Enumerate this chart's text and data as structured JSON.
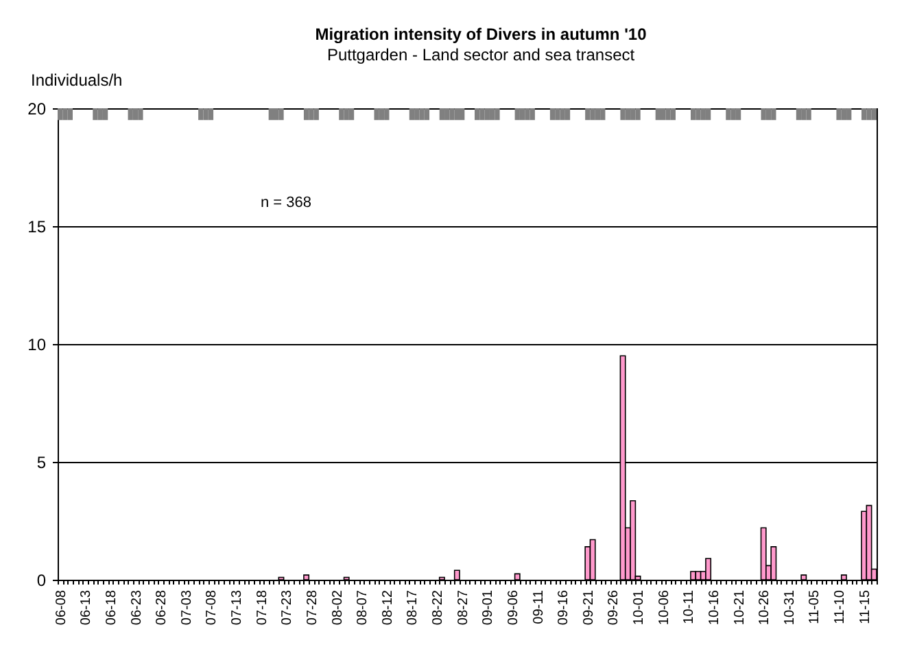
{
  "chart_data": {
    "type": "bar",
    "title": "Migration intensity of Divers in autumn '10",
    "subtitle": "Puttgarden - Land sector and sea transect",
    "ylabel": "Individuals/h",
    "categories": [
      "06-08",
      null,
      null,
      null,
      null,
      "06-13",
      null,
      null,
      null,
      null,
      "06-18",
      null,
      null,
      null,
      null,
      "06-23",
      null,
      null,
      null,
      null,
      "06-28",
      null,
      null,
      null,
      null,
      "07-03",
      null,
      null,
      null,
      null,
      "07-08",
      null,
      null,
      null,
      null,
      "07-13",
      null,
      null,
      null,
      null,
      "07-18",
      null,
      null,
      null,
      null,
      "07-23",
      null,
      null,
      null,
      null,
      "07-28",
      null,
      null,
      null,
      null,
      "08-02",
      null,
      null,
      null,
      null,
      "08-07",
      null,
      null,
      null,
      null,
      "08-12",
      null,
      null,
      null,
      null,
      "08-17",
      null,
      null,
      null,
      null,
      "08-22",
      null,
      null,
      null,
      null,
      "08-27",
      null,
      null,
      null,
      null,
      "09-01",
      null,
      null,
      null,
      null,
      "09-06",
      null,
      null,
      null,
      null,
      "09-11",
      null,
      null,
      null,
      null,
      "09-16",
      null,
      null,
      null,
      null,
      "09-21",
      null,
      null,
      null,
      null,
      "09-26",
      null,
      null,
      null,
      null,
      "10-01",
      null,
      null,
      null,
      null,
      "10-06",
      null,
      null,
      null,
      null,
      "10-11",
      null,
      null,
      null,
      null,
      "10-16",
      null,
      null,
      null,
      null,
      "10-21",
      null,
      null,
      null,
      null,
      "10-26",
      null,
      null,
      null,
      null,
      "10-31",
      null,
      null,
      null,
      null,
      "11-05",
      null,
      null,
      null,
      null,
      "11-10",
      null,
      null,
      null,
      null,
      "11-15",
      null,
      null
    ],
    "series": [
      {
        "color": "#ff99cc",
        "values": [
          null,
          null,
          null,
          null,
          null,
          null,
          null,
          null,
          null,
          null,
          null,
          null,
          null,
          null,
          null,
          null,
          null,
          null,
          null,
          null,
          null,
          null,
          null,
          null,
          null,
          null,
          null,
          null,
          null,
          null,
          null,
          null,
          null,
          null,
          null,
          null,
          null,
          null,
          null,
          null,
          null,
          null,
          null,
          null,
          0.1,
          null,
          null,
          null,
          null,
          0.2,
          null,
          null,
          null,
          null,
          null,
          null,
          null,
          0.1,
          null,
          null,
          null,
          null,
          null,
          null,
          null,
          null,
          null,
          null,
          null,
          null,
          null,
          null,
          null,
          null,
          null,
          null,
          0.1,
          null,
          null,
          0.4,
          null,
          null,
          null,
          null,
          null,
          null,
          null,
          null,
          null,
          null,
          null,
          0.25,
          null,
          null,
          null,
          null,
          null,
          null,
          null,
          null,
          null,
          null,
          null,
          null,
          null,
          1.4,
          1.7,
          null,
          null,
          null,
          null,
          null,
          9.5,
          2.2,
          3.35,
          0.15,
          null,
          null,
          null,
          null,
          null,
          null,
          null,
          null,
          null,
          null,
          0.35,
          0.35,
          0.35,
          0.9,
          null,
          null,
          null,
          null,
          null,
          null,
          null,
          null,
          null,
          null,
          2.2,
          0.6,
          1.4,
          null,
          null,
          null,
          null,
          null,
          0.2,
          null,
          null,
          null,
          null,
          null,
          null,
          null,
          0.2,
          null,
          null,
          null,
          2.9,
          3.15,
          0.45
        ]
      },
      {
        "color": "#808080",
        "values": [
          0.5,
          0.5,
          0.5,
          null,
          null,
          null,
          null,
          0.5,
          0.5,
          0.5,
          null,
          null,
          null,
          null,
          0.5,
          0.5,
          0.5,
          null,
          null,
          null,
          null,
          null,
          null,
          null,
          null,
          null,
          null,
          null,
          0.5,
          0.5,
          0.5,
          null,
          null,
          null,
          null,
          null,
          null,
          null,
          null,
          null,
          null,
          null,
          0.5,
          0.5,
          0.5,
          null,
          null,
          null,
          null,
          0.5,
          0.5,
          0.5,
          null,
          null,
          null,
          null,
          0.5,
          0.5,
          0.5,
          null,
          null,
          null,
          null,
          0.5,
          0.5,
          0.5,
          null,
          null,
          null,
          null,
          0.5,
          0.5,
          0.5,
          0.5,
          null,
          null,
          0.5,
          0.5,
          0.5,
          0.5,
          0.5,
          null,
          null,
          0.5,
          0.5,
          0.5,
          0.5,
          0.5,
          null,
          null,
          null,
          0.5,
          0.5,
          0.5,
          0.5,
          null,
          null,
          null,
          0.5,
          0.5,
          0.5,
          0.5,
          null,
          null,
          null,
          0.5,
          0.5,
          0.5,
          0.5,
          null,
          null,
          null,
          0.5,
          0.5,
          0.5,
          0.5,
          null,
          null,
          null,
          0.5,
          0.5,
          0.5,
          0.5,
          null,
          null,
          null,
          0.5,
          0.5,
          0.5,
          0.5,
          null,
          null,
          null,
          0.5,
          0.5,
          0.5,
          null,
          null,
          null,
          null,
          0.5,
          0.5,
          0.5,
          null,
          null,
          null,
          null,
          0.5,
          0.5,
          0.5,
          null,
          null,
          null,
          null,
          null,
          0.5,
          0.5,
          0.5,
          null,
          null,
          0.5,
          0.5,
          0.5
        ],
        "base": [
          19.5,
          19.5,
          19.5,
          null,
          null,
          null,
          null,
          19.5,
          19.5,
          19.5,
          null,
          null,
          null,
          null,
          19.5,
          19.5,
          19.5,
          null,
          null,
          null,
          null,
          null,
          null,
          null,
          null,
          null,
          null,
          null,
          19.5,
          19.5,
          19.5,
          null,
          null,
          null,
          null,
          null,
          null,
          null,
          null,
          null,
          null,
          null,
          19.5,
          19.5,
          19.5,
          null,
          null,
          null,
          null,
          19.5,
          19.5,
          19.5,
          null,
          null,
          null,
          null,
          19.5,
          19.5,
          19.5,
          null,
          null,
          null,
          null,
          19.5,
          19.5,
          19.5,
          null,
          null,
          null,
          null,
          19.5,
          19.5,
          19.5,
          19.5,
          null,
          null,
          19.5,
          19.5,
          19.5,
          19.5,
          19.5,
          null,
          null,
          19.5,
          19.5,
          19.5,
          19.5,
          19.5,
          null,
          null,
          null,
          19.5,
          19.5,
          19.5,
          19.5,
          null,
          null,
          null,
          19.5,
          19.5,
          19.5,
          19.5,
          null,
          null,
          null,
          19.5,
          19.5,
          19.5,
          19.5,
          null,
          null,
          null,
          19.5,
          19.5,
          19.5,
          19.5,
          null,
          null,
          null,
          19.5,
          19.5,
          19.5,
          19.5,
          null,
          null,
          null,
          19.5,
          19.5,
          19.5,
          19.5,
          null,
          null,
          null,
          19.5,
          19.5,
          19.5,
          null,
          null,
          null,
          null,
          19.5,
          19.5,
          19.5,
          null,
          null,
          null,
          null,
          19.5,
          19.5,
          19.5,
          null,
          null,
          null,
          null,
          null,
          19.5,
          19.5,
          19.5,
          null,
          null,
          19.5,
          19.5,
          19.5
        ]
      }
    ],
    "ylim": [
      0,
      20
    ],
    "yticks": [
      0,
      5,
      10,
      15,
      20
    ],
    "grid": "y",
    "annotations": [
      "n = 368"
    ]
  }
}
